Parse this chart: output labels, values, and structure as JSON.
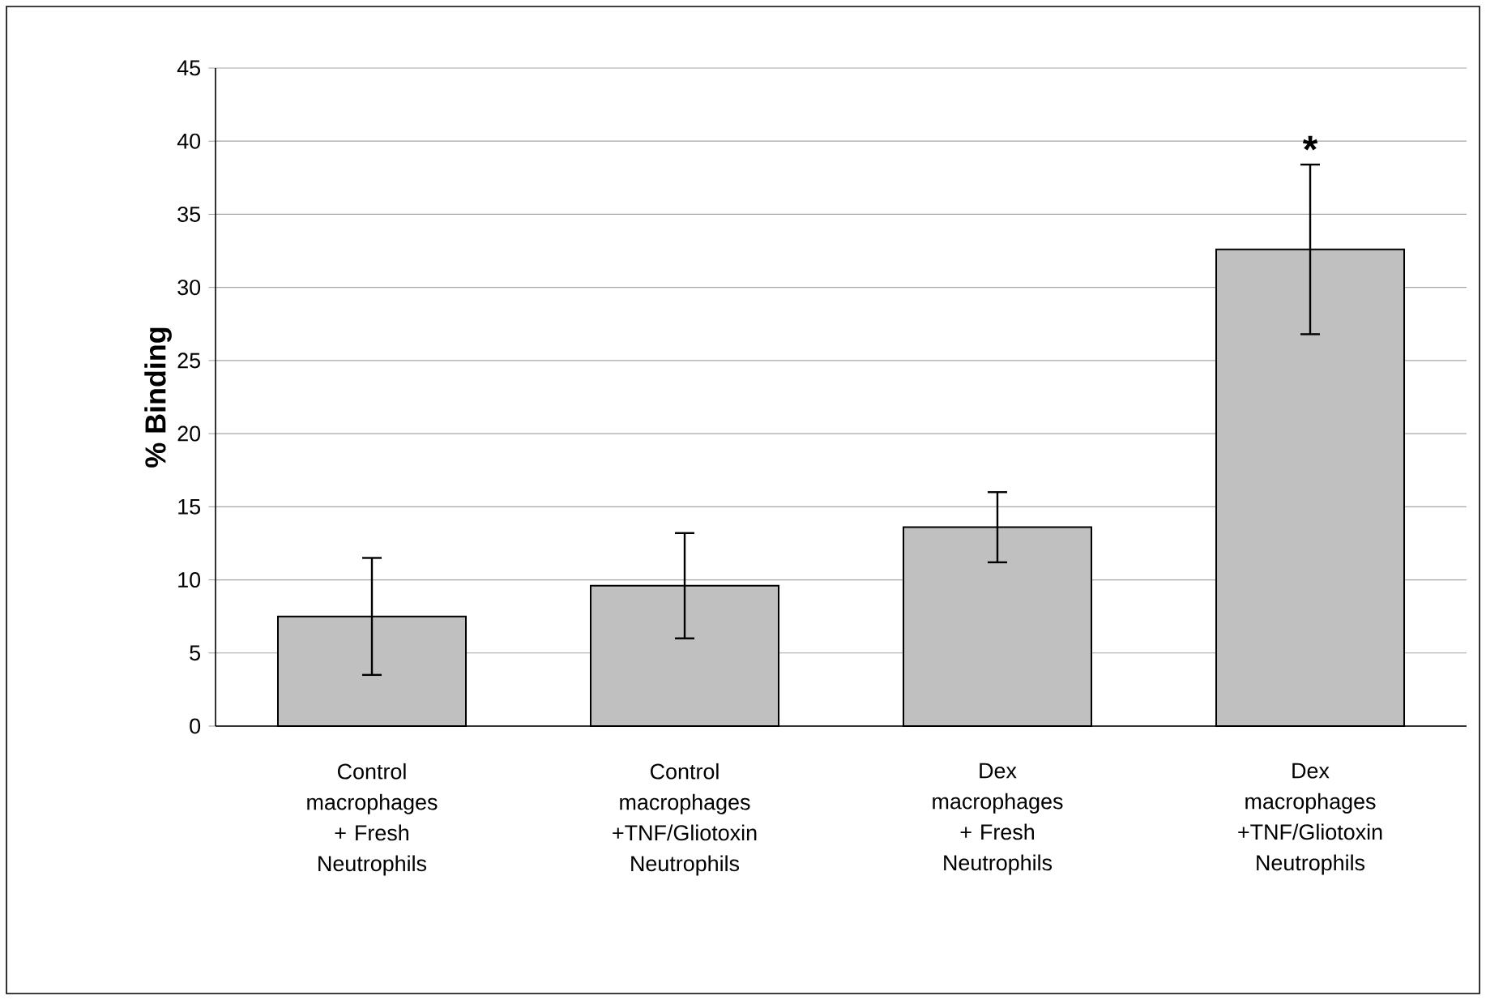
{
  "chart_data": {
    "type": "bar",
    "ylabel": "% Binding",
    "categories": [
      "Control macrophages + Fresh Neutrophils",
      "Control macrophages +TNF/Gliotoxin Neutrophils",
      "Dex macrophages + Fresh Neutrophils",
      "Dex macrophages +TNF/Gliotoxin Neutrophils"
    ],
    "values": [
      7.5,
      9.6,
      13.6,
      32.6
    ],
    "errors": [
      4.0,
      3.6,
      2.4,
      5.8
    ],
    "color": "#c0c0c0",
    "ylim": [
      0,
      45
    ],
    "yticks": [
      0,
      5,
      10,
      15,
      20,
      25,
      30,
      35,
      40,
      45
    ],
    "grid": "y",
    "annotations": [
      {
        "text": "*",
        "x": "Dex macrophages +TNF/Gliotoxin Neutrophils",
        "y": 38.4
      }
    ]
  }
}
